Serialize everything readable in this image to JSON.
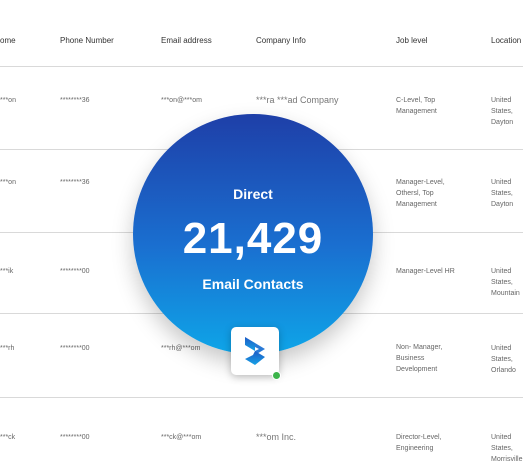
{
  "columns": {
    "name": "ome",
    "phone": "Phone Number",
    "email": "Email address",
    "company": "Company Info",
    "level": "Job level",
    "location": "Location"
  },
  "rows": [
    {
      "name": "***on",
      "phone": "********36",
      "email": "***on@***om",
      "company": "***ra ***ad Company",
      "level": "C-Level, Top Management",
      "location": "United States, Dayton"
    },
    {
      "name": "***on",
      "phone": "********36",
      "email": "",
      "company": "",
      "level": "Manager-Level, Othersl, Top Management",
      "location": "United States, Dayton"
    },
    {
      "name": "***ik",
      "phone": "********00",
      "email": "",
      "company": "",
      "level": "Manager-Level HR",
      "location": "United States, Mountain"
    },
    {
      "name": "***rh",
      "phone": "********00",
      "email": "***rh@***om",
      "company": "",
      "level": "Non- Manager, Business Development",
      "location": "United States, Orlando"
    },
    {
      "name": "***ck",
      "phone": "********00",
      "email": "***ck@***om",
      "company": "***om Inc.",
      "level": "Director-Level, Engineering",
      "location": "United States, Morrisville"
    }
  ],
  "highlight": {
    "title": "Direct",
    "number": "21,429",
    "subtitle": "Email Contacts"
  },
  "logo": {
    "icon": "brand-logo-icon",
    "status_color": "#3cb44b"
  }
}
